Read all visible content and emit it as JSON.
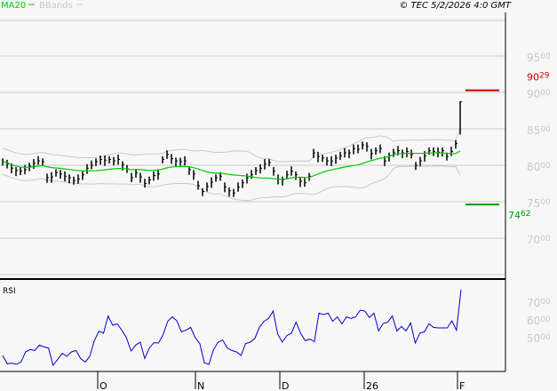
{
  "header": {
    "legend_ma": "MA20",
    "legend_bb": "BBands",
    "copyright": "© TEC 5/2/2026 4:0 GMT"
  },
  "colors": {
    "ma": "#00cc00",
    "bbands": "#c8c8c8",
    "bars": "#000000",
    "rsi": "#0000cc",
    "resistance": "#cc0000",
    "support": "#009900",
    "axis_text": "#c8c8c8"
  },
  "chart_data": [
    {
      "type": "ohlc-bar",
      "overlays": [
        "MA20",
        "BBands"
      ],
      "ylim": [
        6500,
        9800
      ],
      "yticks": [
        {
          "major": "70",
          "minor": "00",
          "v": 7000
        },
        {
          "major": "75",
          "minor": "00",
          "v": 7500
        },
        {
          "major": "80",
          "minor": "00",
          "v": 8000
        },
        {
          "major": "85",
          "minor": "00",
          "v": 8500
        },
        {
          "major": "90",
          "minor": "00",
          "v": 9000
        },
        {
          "major": "95",
          "minor": "00",
          "v": 9500
        }
      ],
      "xticks": [
        {
          "label": "O",
          "index": 21
        },
        {
          "label": "N",
          "index": 43
        },
        {
          "label": "D",
          "index": 62
        },
        {
          "label": "26",
          "index": 81
        },
        {
          "label": "F",
          "index": 102
        }
      ],
      "close": [
        8050,
        8020,
        7960,
        7930,
        7920,
        7940,
        7990,
        8030,
        8060,
        8050,
        7830,
        7840,
        7900,
        7880,
        7850,
        7830,
        7790,
        7810,
        7870,
        7960,
        8000,
        8050,
        8080,
        8070,
        8080,
        8060,
        8080,
        8010,
        7950,
        7830,
        7900,
        7840,
        7750,
        7800,
        7860,
        7880,
        8080,
        8150,
        8090,
        8060,
        8050,
        8060,
        7940,
        7880,
        7720,
        7640,
        7710,
        7770,
        7830,
        7850,
        7700,
        7650,
        7620,
        7700,
        7760,
        7830,
        7870,
        7930,
        7960,
        8020,
        8040,
        7920,
        7810,
        7800,
        7870,
        7920,
        7870,
        7780,
        7760,
        7850,
        8170,
        8120,
        8100,
        8060,
        8060,
        8100,
        8130,
        8170,
        8170,
        8230,
        8220,
        8280,
        8260,
        8160,
        8200,
        8230,
        8060,
        8130,
        8170,
        8200,
        8170,
        8190,
        8150,
        8000,
        8060,
        8130,
        8200,
        8190,
        8180,
        8200,
        8120,
        8190,
        8300,
        8870
      ],
      "last_bar": {
        "high": 8880,
        "low": 8420
      },
      "levels": [
        {
          "label_major": "90",
          "label_minor": "29",
          "value": 9029,
          "kind": "resistance"
        },
        {
          "label_major": "74",
          "label_minor": "62",
          "value": 7462,
          "kind": "support"
        }
      ]
    },
    {
      "type": "line",
      "title": "RSI",
      "ylim": [
        30.5,
        78
      ],
      "yticks": [
        {
          "major": "50",
          "minor": "00",
          "v": 50
        },
        {
          "major": "60",
          "minor": "00",
          "v": 60
        },
        {
          "major": "70",
          "minor": "00",
          "v": 70
        }
      ],
      "values": [
        39.5,
        34.8,
        35.2,
        34.5,
        35.8,
        41.5,
        42.8,
        42.3,
        45.3,
        44.3,
        43.7,
        34,
        37.3,
        40.7,
        39,
        41.5,
        42.3,
        37.8,
        35.8,
        39,
        47.8,
        53.2,
        52,
        61.7,
        56.5,
        57.3,
        53.7,
        49.5,
        42,
        45.3,
        47,
        37.8,
        43.7,
        46.7,
        46.5,
        51.2,
        58.7,
        61.2,
        59,
        52.8,
        53.7,
        55.3,
        49.5,
        46.2,
        35.3,
        34.5,
        42.8,
        47,
        48.2,
        43.7,
        42.3,
        41.5,
        39.5,
        46.2,
        47,
        49,
        55.3,
        58.7,
        60.3,
        64.5,
        51.5,
        47,
        50.7,
        52,
        58.3,
        52,
        47.8,
        48.7,
        47.3,
        63.3,
        62.5,
        63.3,
        58.7,
        61.2,
        57.3,
        61.2,
        60.3,
        61.2,
        65,
        64.5,
        60.8,
        63.3,
        53.3,
        57.5,
        58.2,
        61.7,
        53.3,
        55.8,
        53.3,
        57.8,
        46.5,
        52,
        52.8,
        57.3,
        55.3,
        55,
        55,
        55,
        59,
        53.7,
        76.5
      ]
    }
  ]
}
